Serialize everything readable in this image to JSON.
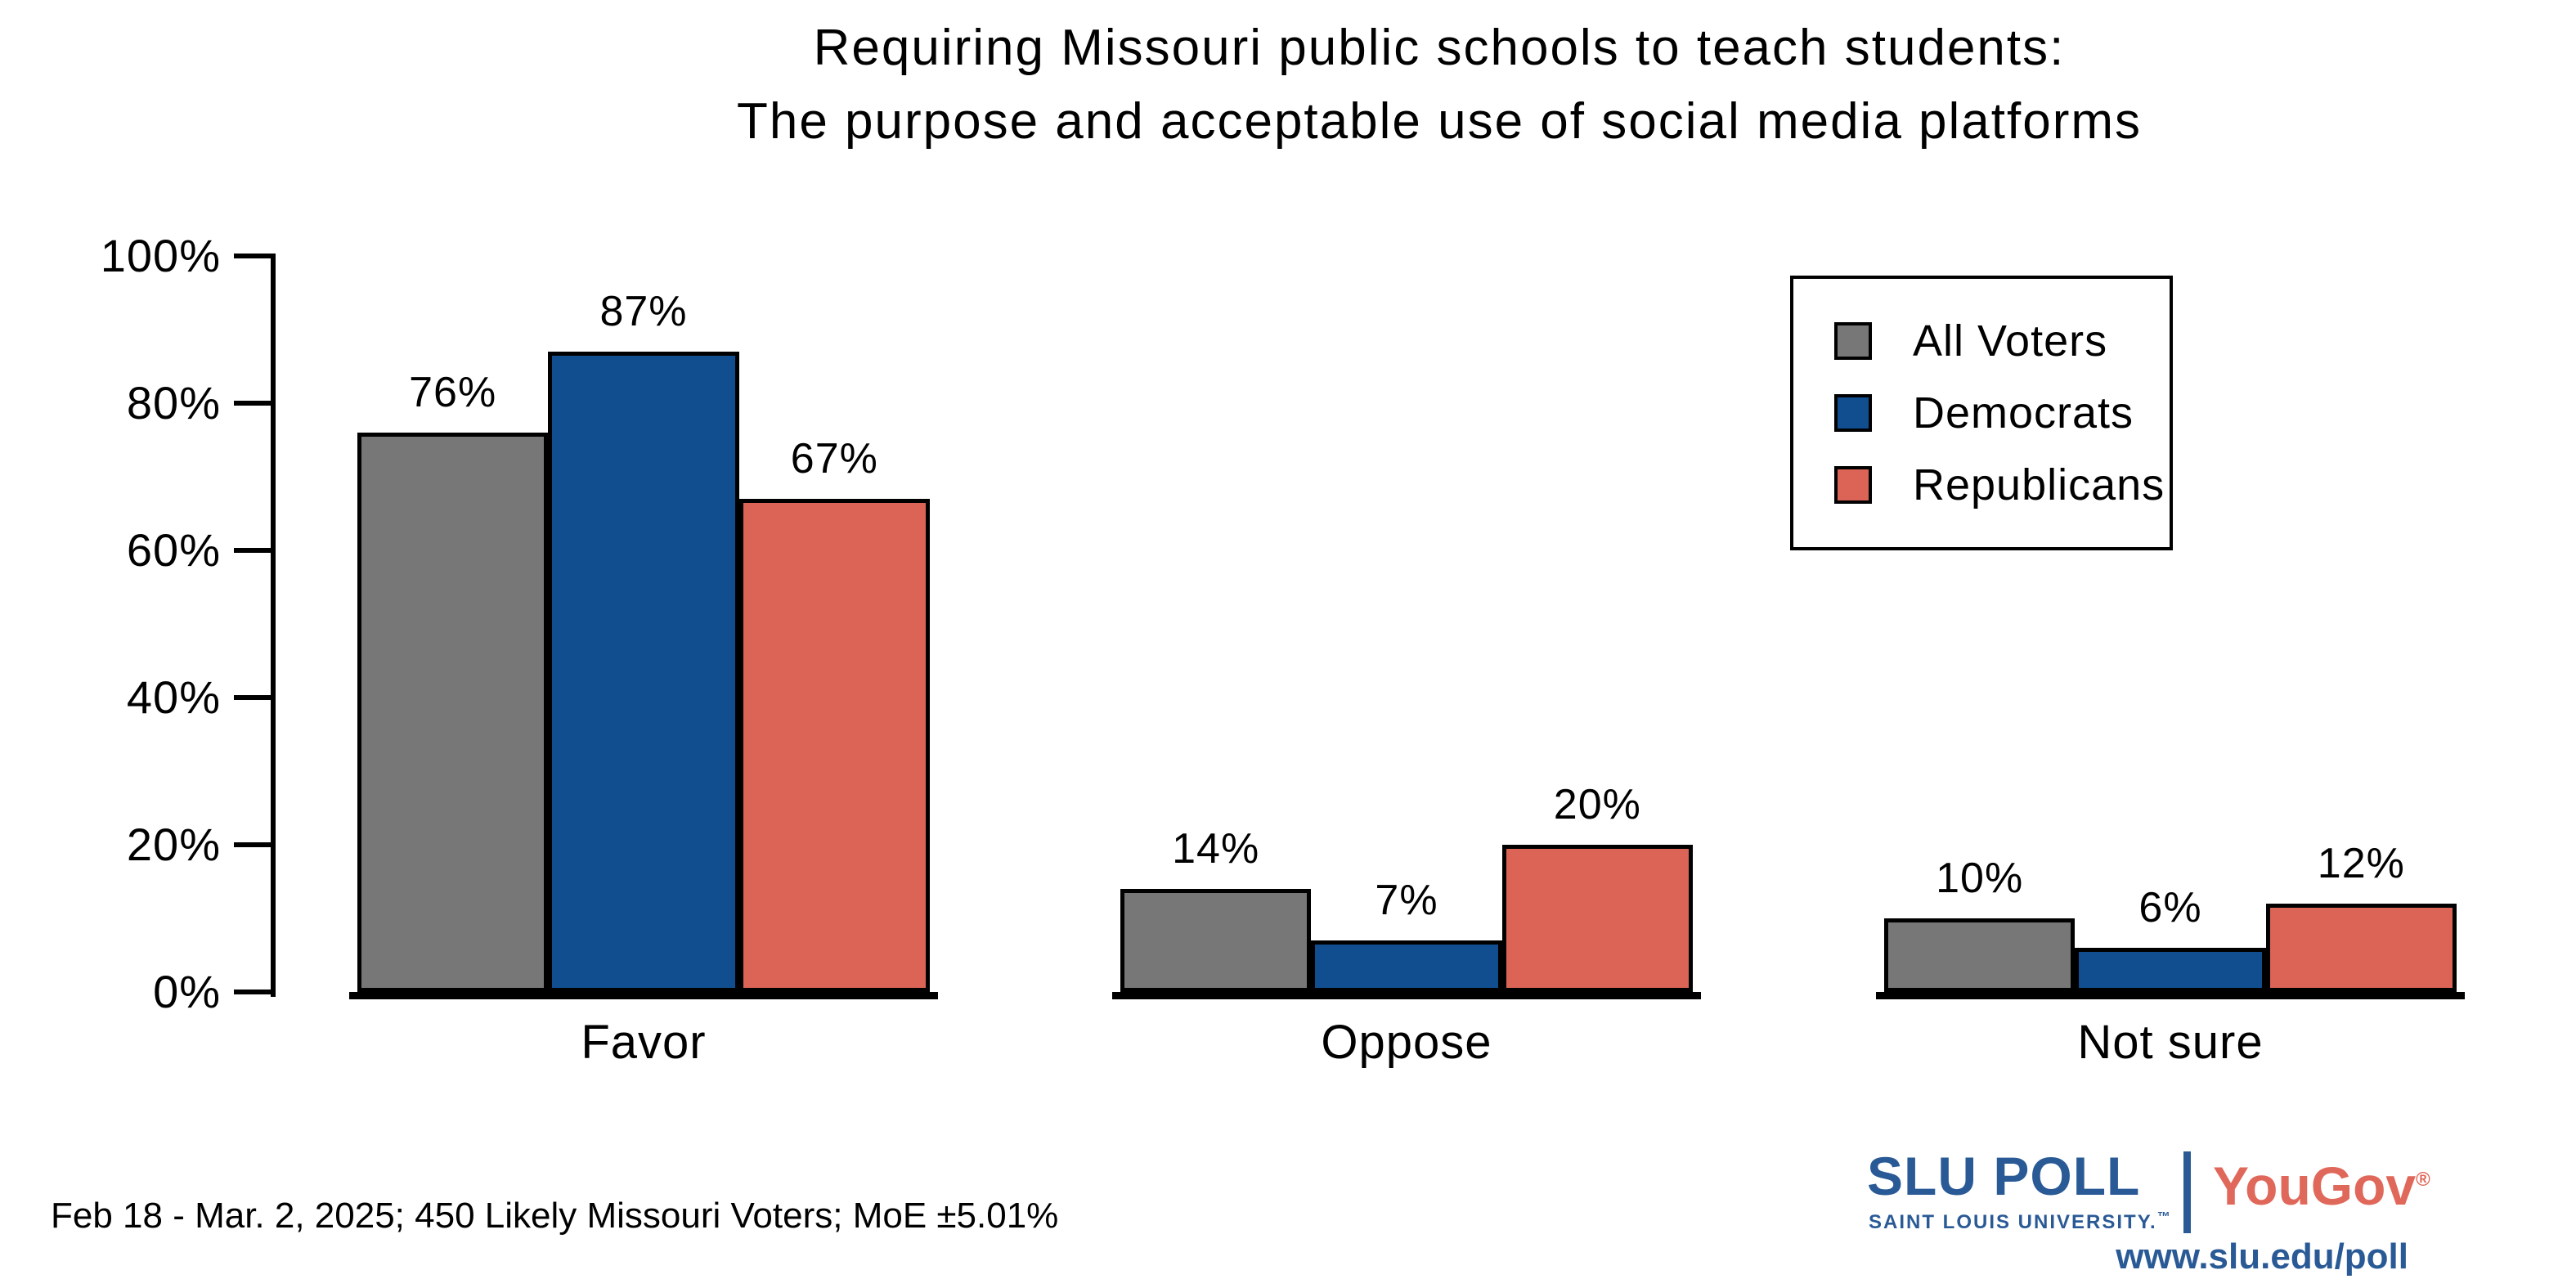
{
  "title": {
    "line1": "Requiring Missouri public schools to teach students:",
    "line2": "The purpose and acceptable use of social media platforms"
  },
  "chart_data": {
    "type": "bar",
    "categories": [
      "Favor",
      "Oppose",
      "Not sure"
    ],
    "series": [
      {
        "name": "All Voters",
        "color": "#777777",
        "values": [
          76,
          14,
          10
        ]
      },
      {
        "name": "Democrats",
        "color": "#114E90",
        "values": [
          87,
          7,
          6
        ]
      },
      {
        "name": "Republicans",
        "color": "#DB6456",
        "values": [
          67,
          20,
          12
        ]
      }
    ],
    "value_labels": [
      [
        "76%",
        "14%",
        "10%"
      ],
      [
        "87%",
        "7%",
        "6%"
      ],
      [
        "67%",
        "20%",
        "12%"
      ]
    ],
    "title": "Requiring Missouri public schools to teach students: The purpose and acceptable use of social media platforms",
    "xlabel": "",
    "ylabel": "",
    "ylim": [
      0,
      100
    ],
    "yticks": [
      "0%",
      "20%",
      "40%",
      "60%",
      "80%",
      "100%"
    ],
    "grid": false,
    "legend_position": "top-right",
    "bar_outline_color": "#000000"
  },
  "legend": {
    "items": [
      "All Voters",
      "Democrats",
      "Republicans"
    ]
  },
  "footer": {
    "note": "Feb 18 - Mar. 2, 2025; 450 Likely Missouri Voters; MoE ±5.01%"
  },
  "branding": {
    "slu_poll": "SLU POLL",
    "slu_sub": "SAINT LOUIS UNIVERSITY.",
    "slu_tm": "™",
    "yougov": "YouGov",
    "yougov_reg": "®",
    "url": "www.slu.edu/poll",
    "slu_blue": "#2A5A96",
    "yougov_red": "#E0685A"
  }
}
